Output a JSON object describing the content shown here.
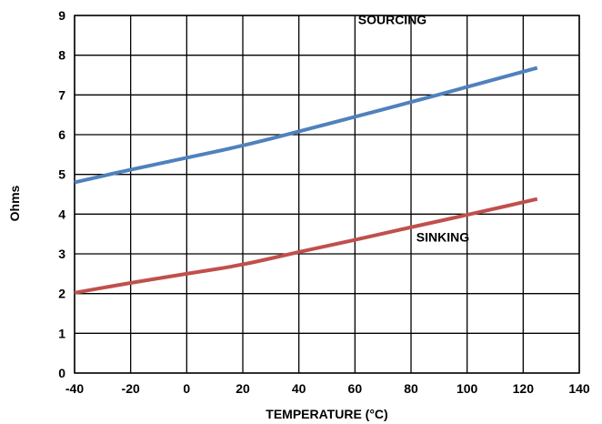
{
  "chart_data": {
    "type": "line",
    "title": "",
    "xlabel": "TEMPERATURE (°C)",
    "ylabel": "Ohms",
    "xlim": [
      -40,
      140
    ],
    "ylim": [
      0,
      9
    ],
    "xticks": [
      -40,
      -20,
      0,
      20,
      40,
      60,
      80,
      100,
      120,
      140
    ],
    "yticks": [
      0,
      1,
      2,
      3,
      4,
      5,
      6,
      7,
      8,
      9
    ],
    "grid": true,
    "legend": "none",
    "series": [
      {
        "name": "SOURCING",
        "color": "#4f81bd",
        "x": [
          -40,
          -20,
          0,
          20,
          40,
          60,
          80,
          100,
          125
        ],
        "y": [
          4.8,
          5.12,
          5.42,
          5.72,
          6.08,
          6.45,
          6.82,
          7.2,
          7.68
        ]
      },
      {
        "name": "SINKING",
        "color": "#c0504d",
        "x": [
          -40,
          -20,
          0,
          20,
          40,
          60,
          80,
          100,
          125
        ],
        "y": [
          2.02,
          2.27,
          2.5,
          2.72,
          3.05,
          3.35,
          3.67,
          3.98,
          4.38
        ]
      }
    ]
  }
}
